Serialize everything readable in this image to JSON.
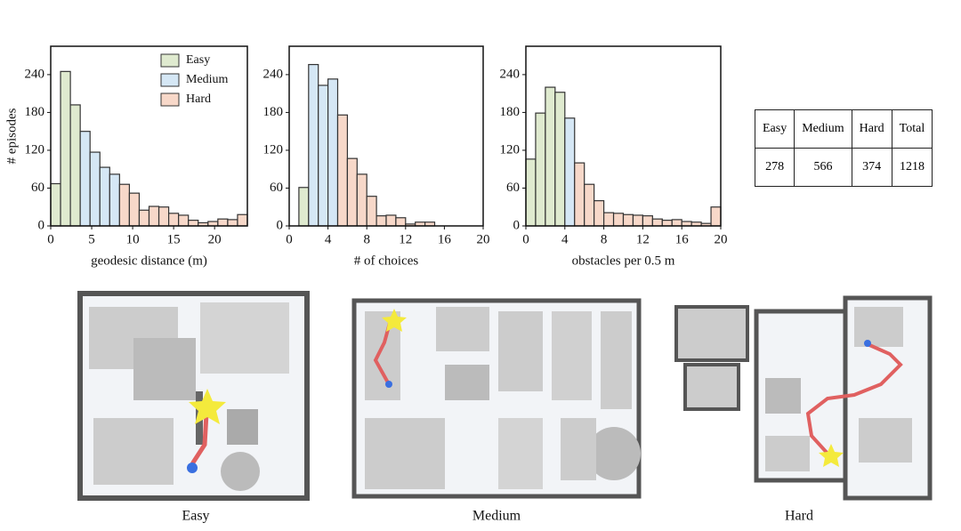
{
  "chart_data": [
    {
      "type": "histogram",
      "xlabel": "geodesic distance (m)",
      "ylabel": "# episodes",
      "legend": "upper right",
      "xlim": [
        0,
        24
      ],
      "xticks": [
        0,
        5,
        10,
        15,
        20
      ],
      "ylim": [
        0,
        285
      ],
      "yticks": [
        0,
        60,
        120,
        180,
        240
      ],
      "series": [
        {
          "name": "Easy",
          "color": "#dfeacf",
          "bins": [
            0,
            1.2,
            2.4,
            3.6
          ],
          "values": [
            67,
            245,
            192
          ]
        },
        {
          "name": "Medium",
          "color": "#d5e7f5",
          "bins": [
            3.6,
            4.8,
            6,
            7.2,
            8.4
          ],
          "values": [
            150,
            117,
            93,
            82
          ]
        },
        {
          "name": "Hard",
          "color": "#f7d8c9",
          "bins": [
            8.4,
            9.6,
            10.8,
            12,
            13.2,
            14.4,
            15.6,
            16.8,
            18,
            19.2,
            20.4,
            21.6,
            22.8,
            24
          ],
          "values": [
            66,
            52,
            25,
            31,
            30,
            20,
            17,
            9,
            5,
            7,
            11,
            10,
            18
          ]
        }
      ]
    },
    {
      "type": "histogram",
      "xlabel": "# of choices",
      "xlim": [
        0,
        20
      ],
      "xticks": [
        0,
        4,
        8,
        12,
        16,
        20
      ],
      "ylim": [
        0,
        285
      ],
      "yticks": [
        0,
        60,
        120,
        180,
        240
      ],
      "series": [
        {
          "color": "#dfeacf",
          "bins": [
            1,
            2
          ],
          "values": [
            61
          ]
        },
        {
          "color": "#d5e7f5",
          "bins": [
            2,
            3,
            4,
            5
          ],
          "values": [
            256,
            223,
            233
          ]
        },
        {
          "color": "#f7d8c9",
          "bins": [
            5,
            6,
            7,
            8,
            9,
            10,
            11,
            12,
            13,
            14,
            15
          ],
          "values": [
            176,
            107,
            82,
            47,
            16,
            17,
            13,
            3,
            6,
            6
          ]
        }
      ]
    },
    {
      "type": "histogram",
      "xlabel": "obstacles per 0.5 m",
      "xlim": [
        0,
        20
      ],
      "xticks": [
        0,
        4,
        8,
        12,
        16,
        20
      ],
      "ylim": [
        0,
        285
      ],
      "yticks": [
        0,
        60,
        120,
        180,
        240
      ],
      "series": [
        {
          "color": "#dfeacf",
          "bins": [
            0,
            1,
            2,
            3,
            4
          ],
          "values": [
            106,
            179,
            220,
            212
          ]
        },
        {
          "color": "#d5e7f5",
          "bins": [
            4,
            5
          ],
          "values": [
            171
          ]
        },
        {
          "color": "#f7d8c9",
          "bins": [
            5,
            6,
            7,
            8,
            9,
            10,
            11,
            12,
            13,
            14,
            15,
            16,
            17,
            18,
            19,
            20
          ],
          "values": [
            100,
            66,
            40,
            21,
            20,
            18,
            17,
            16,
            11,
            9,
            10,
            7,
            6,
            4,
            30
          ]
        }
      ]
    }
  ],
  "table": {
    "header": [
      "Easy",
      "Medium",
      "Hard",
      "Total"
    ],
    "rows": [
      [
        "278",
        "566",
        "374",
        "1218"
      ]
    ]
  },
  "maps": [
    {
      "caption": "Easy"
    },
    {
      "caption": "Medium"
    },
    {
      "caption": "Hard"
    }
  ]
}
